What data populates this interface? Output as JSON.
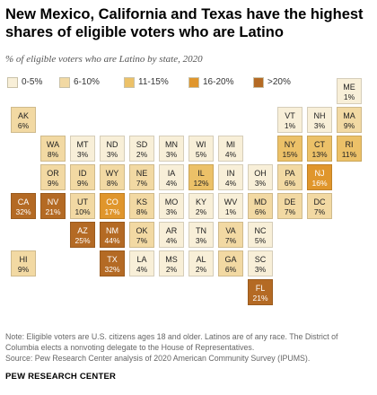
{
  "title": "New Mexico, California and Texas have the highest shares of eligible voters who are Latino",
  "subtitle": "% of eligible voters who are Latino by state, 2020",
  "legend": [
    {
      "label": "0-5%",
      "color": "#f8efd8"
    },
    {
      "label": "6-10%",
      "color": "#f2d9a3"
    },
    {
      "label": "11-15%",
      "color": "#ecc168"
    },
    {
      "label": "16-20%",
      "color": "#e0962c"
    },
    {
      "label": ">20%",
      "color": "#b46a24"
    }
  ],
  "states": [
    {
      "abbr": "ME",
      "value": "1%",
      "bin": 0,
      "row": 0,
      "col": 11
    },
    {
      "abbr": "AK",
      "value": "6%",
      "bin": 1,
      "row": 1,
      "col": 0
    },
    {
      "abbr": "VT",
      "value": "1%",
      "bin": 0,
      "row": 1,
      "col": 9
    },
    {
      "abbr": "NH",
      "value": "3%",
      "bin": 0,
      "row": 1,
      "col": 10
    },
    {
      "abbr": "MA",
      "value": "9%",
      "bin": 1,
      "row": 1,
      "col": 11
    },
    {
      "abbr": "WA",
      "value": "8%",
      "bin": 1,
      "row": 2,
      "col": 1
    },
    {
      "abbr": "MT",
      "value": "3%",
      "bin": 0,
      "row": 2,
      "col": 2
    },
    {
      "abbr": "ND",
      "value": "3%",
      "bin": 0,
      "row": 2,
      "col": 3
    },
    {
      "abbr": "SD",
      "value": "2%",
      "bin": 0,
      "row": 2,
      "col": 4
    },
    {
      "abbr": "MN",
      "value": "3%",
      "bin": 0,
      "row": 2,
      "col": 5
    },
    {
      "abbr": "WI",
      "value": "5%",
      "bin": 0,
      "row": 2,
      "col": 6
    },
    {
      "abbr": "MI",
      "value": "4%",
      "bin": 0,
      "row": 2,
      "col": 7
    },
    {
      "abbr": "NY",
      "value": "15%",
      "bin": 2,
      "row": 2,
      "col": 9
    },
    {
      "abbr": "CT",
      "value": "13%",
      "bin": 2,
      "row": 2,
      "col": 10
    },
    {
      "abbr": "RI",
      "value": "11%",
      "bin": 2,
      "row": 2,
      "col": 11
    },
    {
      "abbr": "OR",
      "value": "9%",
      "bin": 1,
      "row": 3,
      "col": 1
    },
    {
      "abbr": "ID",
      "value": "9%",
      "bin": 1,
      "row": 3,
      "col": 2
    },
    {
      "abbr": "WY",
      "value": "8%",
      "bin": 1,
      "row": 3,
      "col": 3
    },
    {
      "abbr": "NE",
      "value": "7%",
      "bin": 1,
      "row": 3,
      "col": 4
    },
    {
      "abbr": "IA",
      "value": "4%",
      "bin": 0,
      "row": 3,
      "col": 5
    },
    {
      "abbr": "IL",
      "value": "12%",
      "bin": 2,
      "row": 3,
      "col": 6
    },
    {
      "abbr": "IN",
      "value": "4%",
      "bin": 0,
      "row": 3,
      "col": 7
    },
    {
      "abbr": "OH",
      "value": "3%",
      "bin": 0,
      "row": 3,
      "col": 8
    },
    {
      "abbr": "PA",
      "value": "6%",
      "bin": 1,
      "row": 3,
      "col": 9
    },
    {
      "abbr": "NJ",
      "value": "16%",
      "bin": 3,
      "row": 3,
      "col": 10
    },
    {
      "abbr": "CA",
      "value": "32%",
      "bin": 4,
      "row": 4,
      "col": 0
    },
    {
      "abbr": "NV",
      "value": "21%",
      "bin": 4,
      "row": 4,
      "col": 1
    },
    {
      "abbr": "UT",
      "value": "10%",
      "bin": 1,
      "row": 4,
      "col": 2
    },
    {
      "abbr": "CO",
      "value": "17%",
      "bin": 3,
      "row": 4,
      "col": 3
    },
    {
      "abbr": "KS",
      "value": "8%",
      "bin": 1,
      "row": 4,
      "col": 4
    },
    {
      "abbr": "MO",
      "value": "3%",
      "bin": 0,
      "row": 4,
      "col": 5
    },
    {
      "abbr": "KY",
      "value": "2%",
      "bin": 0,
      "row": 4,
      "col": 6
    },
    {
      "abbr": "WV",
      "value": "1%",
      "bin": 0,
      "row": 4,
      "col": 7
    },
    {
      "abbr": "MD",
      "value": "6%",
      "bin": 1,
      "row": 4,
      "col": 8
    },
    {
      "abbr": "DE",
      "value": "7%",
      "bin": 1,
      "row": 4,
      "col": 9
    },
    {
      "abbr": "DC",
      "value": "7%",
      "bin": 1,
      "row": 4,
      "col": 10
    },
    {
      "abbr": "AZ",
      "value": "25%",
      "bin": 4,
      "row": 5,
      "col": 2
    },
    {
      "abbr": "NM",
      "value": "44%",
      "bin": 4,
      "row": 5,
      "col": 3
    },
    {
      "abbr": "OK",
      "value": "7%",
      "bin": 1,
      "row": 5,
      "col": 4
    },
    {
      "abbr": "AR",
      "value": "4%",
      "bin": 0,
      "row": 5,
      "col": 5
    },
    {
      "abbr": "TN",
      "value": "3%",
      "bin": 0,
      "row": 5,
      "col": 6
    },
    {
      "abbr": "VA",
      "value": "7%",
      "bin": 1,
      "row": 5,
      "col": 7
    },
    {
      "abbr": "NC",
      "value": "5%",
      "bin": 0,
      "row": 5,
      "col": 8
    },
    {
      "abbr": "HI",
      "value": "9%",
      "bin": 1,
      "row": 6,
      "col": 0
    },
    {
      "abbr": "TX",
      "value": "32%",
      "bin": 4,
      "row": 6,
      "col": 3
    },
    {
      "abbr": "LA",
      "value": "4%",
      "bin": 0,
      "row": 6,
      "col": 4
    },
    {
      "abbr": "MS",
      "value": "2%",
      "bin": 0,
      "row": 6,
      "col": 5
    },
    {
      "abbr": "AL",
      "value": "2%",
      "bin": 0,
      "row": 6,
      "col": 6
    },
    {
      "abbr": "GA",
      "value": "6%",
      "bin": 1,
      "row": 6,
      "col": 7
    },
    {
      "abbr": "SC",
      "value": "3%",
      "bin": 0,
      "row": 6,
      "col": 8
    },
    {
      "abbr": "FL",
      "value": "21%",
      "bin": 4,
      "row": 7,
      "col": 8
    }
  ],
  "note": "Note: Eligible voters are U.S. citizens ages 18 and older. Latinos are of any race. The District of Columbia elects a nonvoting delegate to the House of Representatives.",
  "source": "Source: Pew Research Center analysis of 2020 American Community Survey (IPUMS).",
  "brand": "PEW RESEARCH CENTER"
}
